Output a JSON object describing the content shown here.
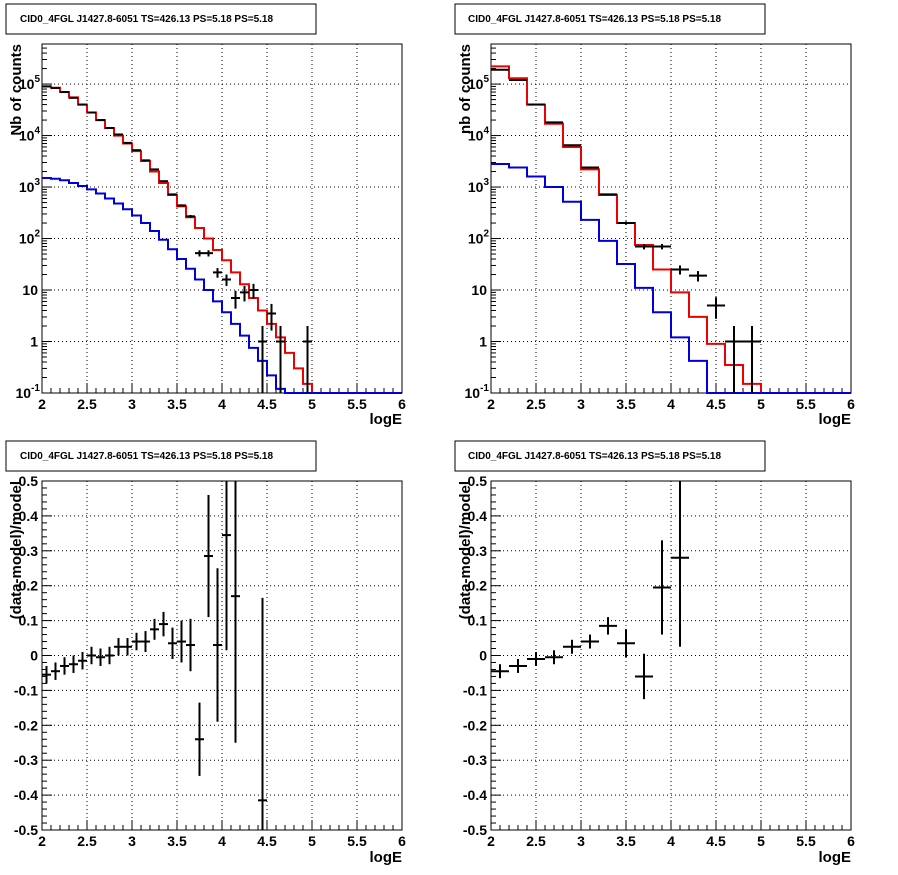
{
  "colors": {
    "data": "#000000",
    "total_model": "#ee0000",
    "source_model": "#0000dd",
    "grid": "#000000"
  },
  "chart_data": [
    {
      "type": "line",
      "title": "CID0_4FGL J1427.8-6051 TS=426.13 PS=5.18 PS=5.18",
      "xlabel": "logE",
      "ylabel": "Nb of counts",
      "xlim": [
        2,
        6
      ],
      "ylim": [
        0.1,
        600000
      ],
      "yscale": "log",
      "grid": true,
      "x_ticks": [
        "2",
        "2.5",
        "3",
        "3.5",
        "4",
        "4.5",
        "5",
        "5.5",
        "6"
      ],
      "y_ticks": [
        "10^-1",
        "1",
        "10",
        "10^2",
        "10^3",
        "10^4",
        "10^5"
      ],
      "series": [
        {
          "role": "total_model",
          "bin_edges": [
            2.0,
            2.1,
            2.2,
            2.3,
            2.4,
            2.5,
            2.6,
            2.7,
            2.8,
            2.9,
            3.0,
            3.1,
            3.2,
            3.3,
            3.4,
            3.5,
            3.6,
            3.7,
            3.8,
            3.9,
            4.0,
            4.1,
            4.2,
            4.3,
            4.4,
            4.5,
            4.6,
            4.7,
            4.8,
            4.9,
            5.0,
            5.1,
            5.2,
            5.3,
            5.4,
            5.5,
            5.6,
            5.7,
            5.8,
            5.9,
            6.0
          ],
          "values": [
            90000,
            85000,
            70000,
            55000,
            40000,
            28000,
            20000,
            14000,
            10000,
            7000,
            5000,
            3200,
            2000,
            1200,
            700,
            420,
            260,
            160,
            100,
            60,
            38,
            22,
            13,
            7,
            4,
            2.2,
            1.2,
            0.6,
            0.3,
            0.15,
            0.1,
            0.1,
            0.1,
            0.1,
            0.1,
            0.1,
            0.1,
            0.1,
            0.1,
            0.1
          ]
        },
        {
          "role": "source_model",
          "bin_edges": [
            2.0,
            2.1,
            2.2,
            2.3,
            2.4,
            2.5,
            2.6,
            2.7,
            2.8,
            2.9,
            3.0,
            3.1,
            3.2,
            3.3,
            3.4,
            3.5,
            3.6,
            3.7,
            3.8,
            3.9,
            4.0,
            4.1,
            4.2,
            4.3,
            4.4,
            4.5,
            4.6,
            4.7,
            4.8,
            4.9,
            5.0,
            5.1,
            5.2,
            5.3,
            5.4,
            5.5,
            5.6,
            5.7,
            5.8,
            5.9,
            6.0
          ],
          "values": [
            1500,
            1450,
            1350,
            1200,
            1050,
            900,
            750,
            600,
            480,
            370,
            280,
            200,
            140,
            95,
            62,
            40,
            26,
            16,
            10,
            6,
            3.7,
            2.2,
            1.3,
            0.75,
            0.42,
            0.22,
            0.12,
            0.1,
            0.1,
            0.1,
            0.1,
            0.1,
            0.1,
            0.1,
            0.1,
            0.1,
            0.1,
            0.1,
            0.1,
            0.1
          ]
        },
        {
          "role": "data",
          "points": [
            {
              "x": 2.05,
              "y": 90000
            },
            {
              "x": 2.15,
              "y": 84000
            },
            {
              "x": 2.25,
              "y": 70000
            },
            {
              "x": 2.35,
              "y": 54000
            },
            {
              "x": 2.45,
              "y": 40000
            },
            {
              "x": 2.55,
              "y": 28000
            },
            {
              "x": 2.65,
              "y": 20000
            },
            {
              "x": 2.75,
              "y": 14000
            },
            {
              "x": 2.85,
              "y": 10500
            },
            {
              "x": 2.95,
              "y": 7200
            },
            {
              "x": 3.05,
              "y": 5200
            },
            {
              "x": 3.15,
              "y": 3300
            },
            {
              "x": 3.25,
              "y": 2200
            },
            {
              "x": 3.35,
              "y": 1300
            },
            {
              "x": 3.45,
              "y": 720
            },
            {
              "x": 3.55,
              "y": 440
            },
            {
              "x": 3.65,
              "y": 270
            },
            {
              "x": 3.75,
              "y": 52
            },
            {
              "x": 3.85,
              "y": 52
            },
            {
              "x": 3.95,
              "y": 22
            },
            {
              "x": 4.05,
              "y": 16
            },
            {
              "x": 4.15,
              "y": 7
            },
            {
              "x": 4.25,
              "y": 9
            },
            {
              "x": 4.35,
              "y": 10
            },
            {
              "x": 4.45,
              "y": 1
            },
            {
              "x": 4.55,
              "y": 3.5
            },
            {
              "x": 4.65,
              "y": 1
            },
            {
              "x": 4.95,
              "y": 1
            }
          ]
        }
      ]
    },
    {
      "type": "line",
      "title": "CID0_4FGL J1427.8-6051 TS=426.13 PS=5.18 PS=5.18",
      "xlabel": "logE",
      "ylabel": "nb of counts",
      "xlim": [
        2,
        6
      ],
      "ylim": [
        0.1,
        600000
      ],
      "yscale": "log",
      "grid": true,
      "x_ticks": [
        "2",
        "2.5",
        "3",
        "3.5",
        "4",
        "4.5",
        "5",
        "5.5",
        "6"
      ],
      "y_ticks": [
        "10^-1",
        "1",
        "10",
        "10^2",
        "10^3",
        "10^4",
        "10^5"
      ],
      "series": [
        {
          "role": "total_model",
          "bin_edges": [
            2.0,
            2.2,
            2.4,
            2.6,
            2.8,
            3.0,
            3.2,
            3.4,
            3.6,
            3.8,
            4.0,
            4.2,
            4.4,
            4.6,
            4.8,
            5.0,
            5.2,
            5.4,
            5.6,
            5.8,
            6.0
          ],
          "values": [
            220000,
            130000,
            40000,
            17000,
            6000,
            2200,
            700,
            200,
            75,
            25,
            9,
            3,
            0.9,
            0.35,
            0.15,
            0.1,
            0.1,
            0.1,
            0.1,
            0.1
          ]
        },
        {
          "role": "source_model",
          "bin_edges": [
            2.0,
            2.2,
            2.4,
            2.6,
            2.8,
            3.0,
            3.2,
            3.4,
            3.6,
            3.8,
            4.0,
            4.2,
            4.4,
            4.6,
            4.8,
            5.0,
            5.2,
            5.4,
            5.6,
            5.8,
            6.0
          ],
          "values": [
            2800,
            2400,
            1600,
            1000,
            520,
            230,
            90,
            32,
            11,
            3.7,
            1.2,
            0.42,
            0.1,
            0.1,
            0.1,
            0.1,
            0.1,
            0.1,
            0.1,
            0.1
          ]
        },
        {
          "role": "data",
          "points": [
            {
              "x": 2.1,
              "y": 190000
            },
            {
              "x": 2.3,
              "y": 120000
            },
            {
              "x": 2.5,
              "y": 40000
            },
            {
              "x": 2.7,
              "y": 18000
            },
            {
              "x": 2.9,
              "y": 6500
            },
            {
              "x": 3.1,
              "y": 2400
            },
            {
              "x": 3.3,
              "y": 720
            },
            {
              "x": 3.5,
              "y": 200
            },
            {
              "x": 3.7,
              "y": 70
            },
            {
              "x": 3.9,
              "y": 70
            },
            {
              "x": 4.1,
              "y": 25
            },
            {
              "x": 4.3,
              "y": 19
            },
            {
              "x": 4.5,
              "y": 5
            },
            {
              "x": 4.7,
              "y": 1
            },
            {
              "x": 4.9,
              "y": 1
            }
          ]
        }
      ]
    },
    {
      "type": "scatter",
      "title": "CID0_4FGL J1427.8-6051 TS=426.13 PS=5.18 PS=5.18",
      "xlabel": "logE",
      "ylabel": "(data-model)/model",
      "xlim": [
        2,
        6
      ],
      "ylim": [
        -0.5,
        0.5
      ],
      "grid": true,
      "x_ticks": [
        "2",
        "2.5",
        "3",
        "3.5",
        "4",
        "4.5",
        "5",
        "5.5",
        "6"
      ],
      "y_ticks": [
        "-0.5",
        "-0.4",
        "-0.3",
        "-0.2",
        "-0.1",
        "0",
        "0.1",
        "0.2",
        "0.3",
        "0.4",
        "0.5"
      ],
      "series": [
        {
          "role": "data",
          "points": [
            {
              "x": 2.05,
              "y": -0.055,
              "err": 0.025
            },
            {
              "x": 2.15,
              "y": -0.045,
              "err": 0.025
            },
            {
              "x": 2.25,
              "y": -0.03,
              "err": 0.025
            },
            {
              "x": 2.35,
              "y": -0.025,
              "err": 0.025
            },
            {
              "x": 2.45,
              "y": -0.015,
              "err": 0.025
            },
            {
              "x": 2.55,
              "y": 0.0,
              "err": 0.025
            },
            {
              "x": 2.65,
              "y": -0.005,
              "err": 0.025
            },
            {
              "x": 2.75,
              "y": 0.0,
              "err": 0.025
            },
            {
              "x": 2.85,
              "y": 0.025,
              "err": 0.025
            },
            {
              "x": 2.95,
              "y": 0.025,
              "err": 0.025
            },
            {
              "x": 3.05,
              "y": 0.04,
              "err": 0.025
            },
            {
              "x": 3.15,
              "y": 0.04,
              "err": 0.03
            },
            {
              "x": 3.25,
              "y": 0.075,
              "err": 0.03
            },
            {
              "x": 3.35,
              "y": 0.09,
              "err": 0.035
            },
            {
              "x": 3.45,
              "y": 0.035,
              "err": 0.045
            },
            {
              "x": 3.55,
              "y": 0.04,
              "err": 0.06
            },
            {
              "x": 3.65,
              "y": 0.03,
              "err": 0.075
            },
            {
              "x": 3.75,
              "y": -0.24,
              "err": 0.105
            },
            {
              "x": 3.85,
              "y": 0.285,
              "err": 0.175
            },
            {
              "x": 3.95,
              "y": 0.03,
              "err": 0.22
            },
            {
              "x": 4.05,
              "y": 0.345,
              "err": 0.33
            },
            {
              "x": 4.15,
              "y": 0.17,
              "err": 0.42
            },
            {
              "x": 4.45,
              "y": -0.415,
              "err": 0.58
            }
          ]
        }
      ]
    },
    {
      "type": "scatter",
      "title": "CID0_4FGL J1427.8-6051 TS=426.13 PS=5.18 PS=5.18",
      "xlabel": "logE",
      "ylabel": "(data-model)/model",
      "xlim": [
        2,
        6
      ],
      "ylim": [
        -0.5,
        0.5
      ],
      "grid": true,
      "x_ticks": [
        "2",
        "2.5",
        "3",
        "3.5",
        "4",
        "4.5",
        "5",
        "5.5",
        "6"
      ],
      "y_ticks": [
        "-0.5",
        "-0.4",
        "-0.3",
        "-0.2",
        "-0.1",
        "0",
        "0.1",
        "0.2",
        "0.3",
        "0.4",
        "0.5"
      ],
      "series": [
        {
          "role": "data",
          "points": [
            {
              "x": 2.1,
              "y": -0.045,
              "err": 0.02
            },
            {
              "x": 2.3,
              "y": -0.03,
              "err": 0.02
            },
            {
              "x": 2.5,
              "y": -0.01,
              "err": 0.02
            },
            {
              "x": 2.7,
              "y": -0.005,
              "err": 0.02
            },
            {
              "x": 2.9,
              "y": 0.025,
              "err": 0.02
            },
            {
              "x": 3.1,
              "y": 0.04,
              "err": 0.02
            },
            {
              "x": 3.3,
              "y": 0.085,
              "err": 0.025
            },
            {
              "x": 3.5,
              "y": 0.035,
              "err": 0.04
            },
            {
              "x": 3.7,
              "y": -0.06,
              "err": 0.065
            },
            {
              "x": 3.9,
              "y": 0.195,
              "err": 0.135
            },
            {
              "x": 4.1,
              "y": 0.28,
              "err": 0.255
            }
          ]
        }
      ]
    }
  ]
}
